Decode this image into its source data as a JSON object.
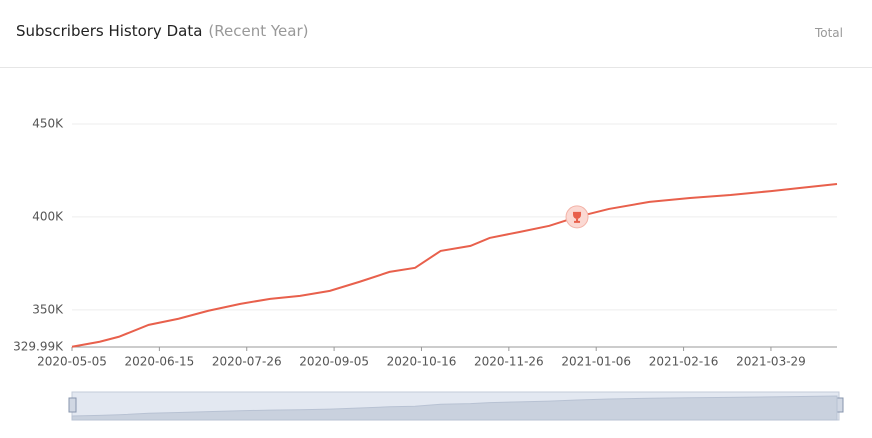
{
  "header": {
    "title": "Subscribers History Data",
    "subtitle": "(Recent Year)",
    "total": "Total"
  },
  "chart_data": {
    "type": "line",
    "x": [
      "2020-05-05",
      "2020-05-18",
      "2020-05-27",
      "2020-06-10",
      "2020-06-24",
      "2020-07-08",
      "2020-07-23",
      "2020-08-06",
      "2020-08-20",
      "2020-09-03",
      "2020-09-17",
      "2020-10-01",
      "2020-10-13",
      "2020-10-25",
      "2020-11-08",
      "2020-11-17",
      "2020-12-01",
      "2020-12-15",
      "2020-12-28",
      "2021-01-12",
      "2021-01-31",
      "2021-02-19",
      "2021-03-10",
      "2021-03-29",
      "2021-04-12",
      "2021-04-29"
    ],
    "series": [
      {
        "name": "Subscribers",
        "color": "#e8604c",
        "values": [
          330100,
          332800,
          335500,
          341900,
          345200,
          349500,
          353200,
          355900,
          357500,
          360200,
          365100,
          370400,
          372600,
          381700,
          384400,
          388700,
          391900,
          395200,
          400000,
          404300,
          408100,
          410200,
          411800,
          413900,
          415600,
          417700
        ]
      }
    ],
    "xlim": [
      "2020-05-05",
      "2021-04-29"
    ],
    "xticks": [
      "2020-05-05",
      "2020-06-15",
      "2020-07-26",
      "2020-09-05",
      "2020-10-16",
      "2020-11-26",
      "2021-01-06",
      "2021-02-16",
      "2021-03-29"
    ],
    "ylim": [
      329990,
      450000
    ],
    "yticks": [
      {
        "value": 329990,
        "label": "329.99K"
      },
      {
        "value": 350000,
        "label": "350K"
      },
      {
        "value": 400000,
        "label": "400K"
      },
      {
        "value": 450000,
        "label": "450K"
      }
    ],
    "grid": true
  }
}
